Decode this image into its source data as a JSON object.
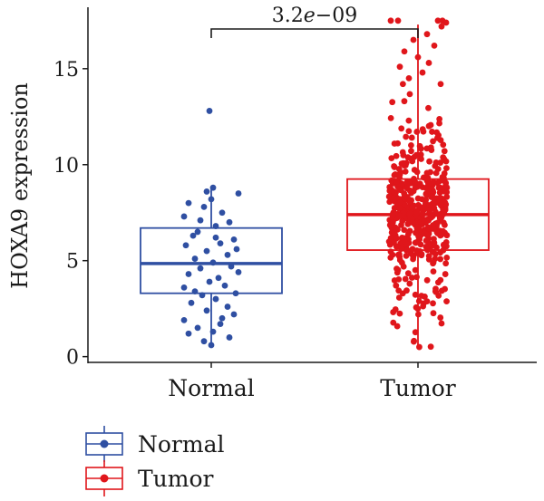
{
  "chart_data": {
    "type": "boxplot-jitter",
    "ylabel": "HOXA9 expression",
    "xlabel": "",
    "ylim": [
      -0.3,
      18.2
    ],
    "yticks": [
      0,
      5,
      10,
      15
    ],
    "categories": [
      "Normal",
      "Tumor"
    ],
    "comparison": {
      "label": "3.2e−09",
      "groups": [
        "Normal",
        "Tumor"
      ]
    },
    "legend": {
      "placement": "bottom-left",
      "entries": [
        "Normal",
        "Tumor"
      ]
    },
    "grid": false,
    "series": [
      {
        "name": "Normal",
        "color": "#2f4fa2",
        "box": {
          "min": 0.6,
          "q1": 3.3,
          "median": 4.85,
          "q3": 6.7,
          "max": 8.8
        },
        "points": [
          [
            -0.02,
            12.8
          ],
          [
            0.02,
            8.8
          ],
          [
            -0.05,
            8.6
          ],
          [
            0.3,
            8.5
          ],
          [
            -0.25,
            8.0
          ],
          [
            0.0,
            8.2
          ],
          [
            -0.08,
            7.8
          ],
          [
            0.12,
            7.5
          ],
          [
            -0.3,
            7.3
          ],
          [
            0.2,
            7.0
          ],
          [
            -0.15,
            6.5
          ],
          [
            0.05,
            6.8
          ],
          [
            -0.2,
            6.3
          ],
          [
            0.25,
            6.1
          ],
          [
            0.1,
            5.9
          ],
          [
            -0.28,
            5.8
          ],
          [
            -0.05,
            5.5
          ],
          [
            0.18,
            5.3
          ],
          [
            -0.18,
            5.1
          ],
          [
            0.02,
            4.9
          ],
          [
            0.22,
            4.7
          ],
          [
            -0.12,
            4.6
          ],
          [
            0.3,
            4.4
          ],
          [
            -0.25,
            4.3
          ],
          [
            0.08,
            4.1
          ],
          [
            -0.02,
            3.9
          ],
          [
            0.15,
            3.7
          ],
          [
            -0.3,
            3.6
          ],
          [
            0.27,
            3.3
          ],
          [
            -0.1,
            3.2
          ],
          [
            0.05,
            3.0
          ],
          [
            -0.22,
            2.8
          ],
          [
            0.18,
            2.6
          ],
          [
            -0.05,
            2.4
          ],
          [
            0.25,
            2.2
          ],
          [
            -0.3,
            1.9
          ],
          [
            0.1,
            1.7
          ],
          [
            -0.15,
            1.5
          ],
          [
            0.02,
            1.3
          ],
          [
            -0.25,
            1.2
          ],
          [
            0.2,
            1.0
          ],
          [
            -0.08,
            0.8
          ],
          [
            0.0,
            0.6
          ],
          [
            0.12,
            2.0
          ],
          [
            -0.18,
            3.4
          ],
          [
            0.28,
            5.6
          ],
          [
            -0.12,
            7.1
          ],
          [
            0.05,
            6.2
          ]
        ]
      },
      {
        "name": "Tumor",
        "color": "#e0161b",
        "box": {
          "min": 0.5,
          "q1": 5.55,
          "median": 7.4,
          "q3": 9.25,
          "max": 17.3
        },
        "n_points": 480,
        "outliers": [
          [
            -0.3,
            17.5
          ],
          [
            -0.22,
            17.5
          ],
          [
            0.22,
            17.5
          ],
          [
            0.27,
            17.5
          ],
          [
            0.31,
            17.4
          ],
          [
            0.26,
            17.2
          ],
          [
            0.1,
            16.8
          ],
          [
            -0.05,
            16.5
          ],
          [
            0.18,
            16.2
          ],
          [
            -0.15,
            15.9
          ],
          [
            0.0,
            15.6
          ],
          [
            0.12,
            15.3
          ],
          [
            -0.2,
            15.1
          ],
          [
            0.05,
            14.8
          ],
          [
            -0.1,
            14.5
          ],
          [
            0.25,
            14.2
          ]
        ]
      }
    ]
  }
}
